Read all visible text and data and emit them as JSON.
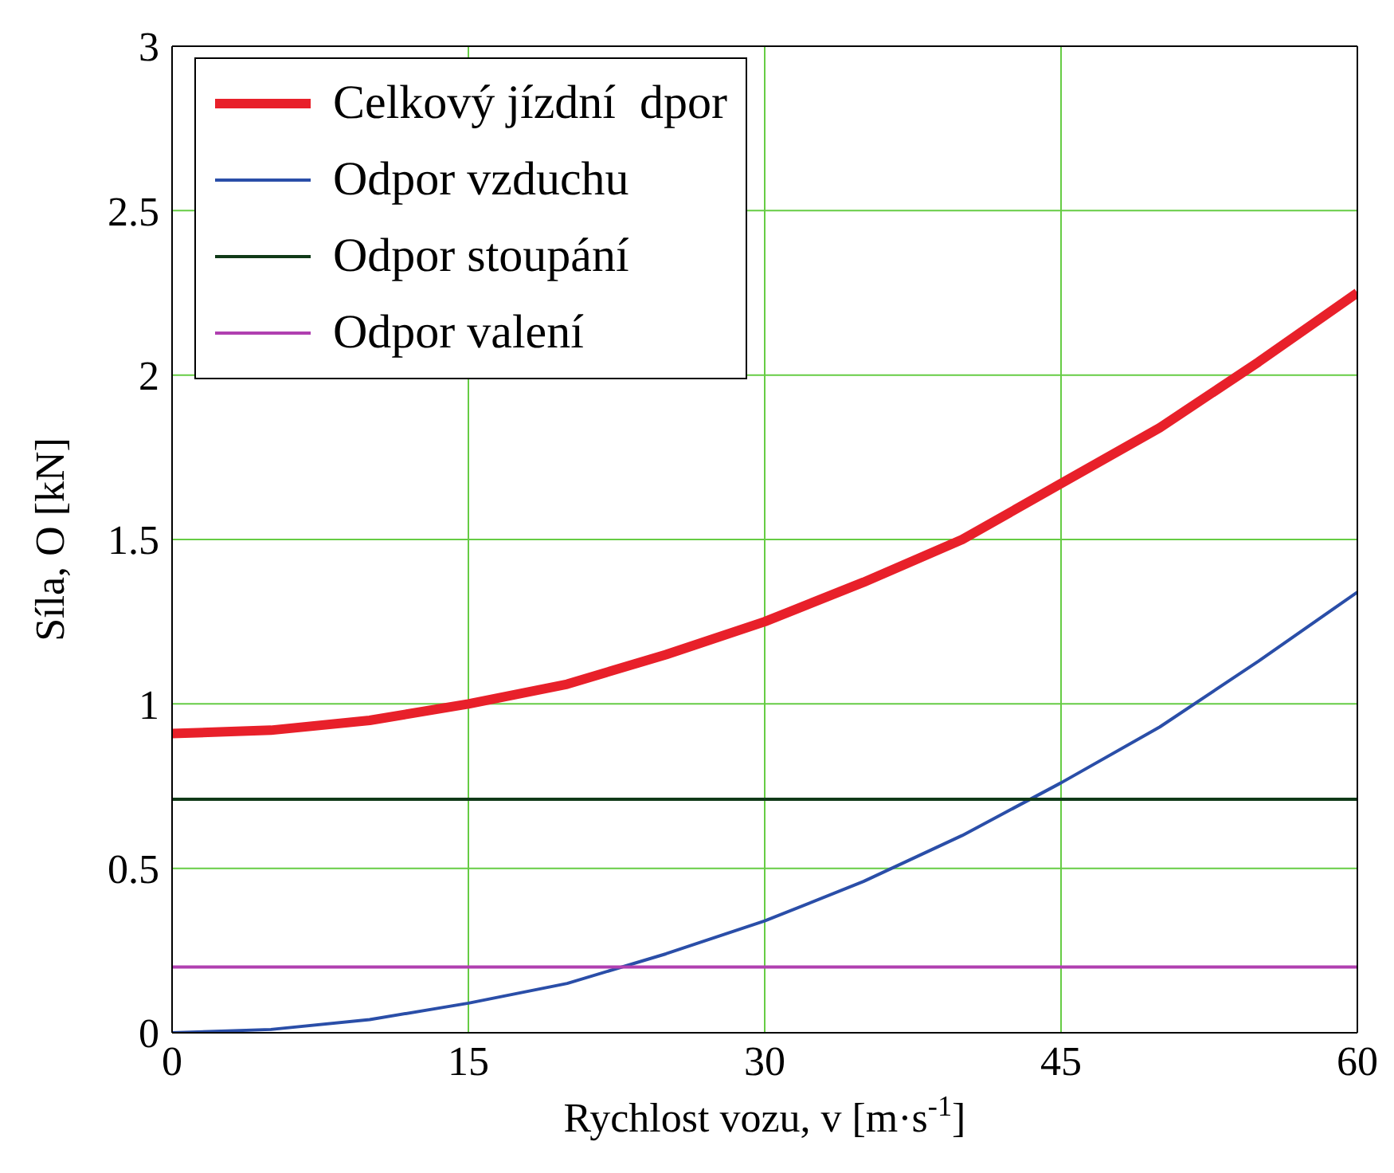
{
  "chart_data": {
    "type": "line",
    "xlabel": "Rychlost vozu, v [m·s$^{-1}$]",
    "ylabel": "Síla, O [kN]",
    "xlim": [
      0,
      60
    ],
    "ylim": [
      0,
      3
    ],
    "xticks": [
      0,
      15,
      30,
      45,
      60
    ],
    "yticks": [
      0,
      0.5,
      1,
      1.5,
      2,
      2.5,
      3
    ],
    "grid": true,
    "legend": "top left",
    "marker": "none",
    "line_style": "solid",
    "series": [
      {
        "name": "Celkový jízdní  dpor",
        "color": "#e8202a",
        "x": [
          0,
          5,
          10,
          15,
          20,
          25,
          30,
          35,
          40,
          45,
          50,
          55,
          60
        ],
        "values": [
          0.91,
          0.92,
          0.95,
          1.0,
          1.06,
          1.15,
          1.25,
          1.37,
          1.5,
          1.67,
          1.84,
          2.04,
          2.25
        ]
      },
      {
        "name": "Odpor vzduchu",
        "color": "#2a4ea8",
        "x": [
          0,
          5,
          10,
          15,
          20,
          25,
          30,
          35,
          40,
          45,
          50,
          55,
          60
        ],
        "values": [
          0,
          0.01,
          0.04,
          0.09,
          0.15,
          0.24,
          0.34,
          0.46,
          0.6,
          0.76,
          0.93,
          1.13,
          1.34
        ]
      },
      {
        "name": "Odpor stoupání",
        "color": "#103a18",
        "x": [
          0,
          60
        ],
        "values": [
          0.71,
          0.71
        ]
      },
      {
        "name": "Odpor valení",
        "color": "#b040b0",
        "x": [
          0,
          60
        ],
        "values": [
          0.2,
          0.2
        ]
      }
    ]
  }
}
